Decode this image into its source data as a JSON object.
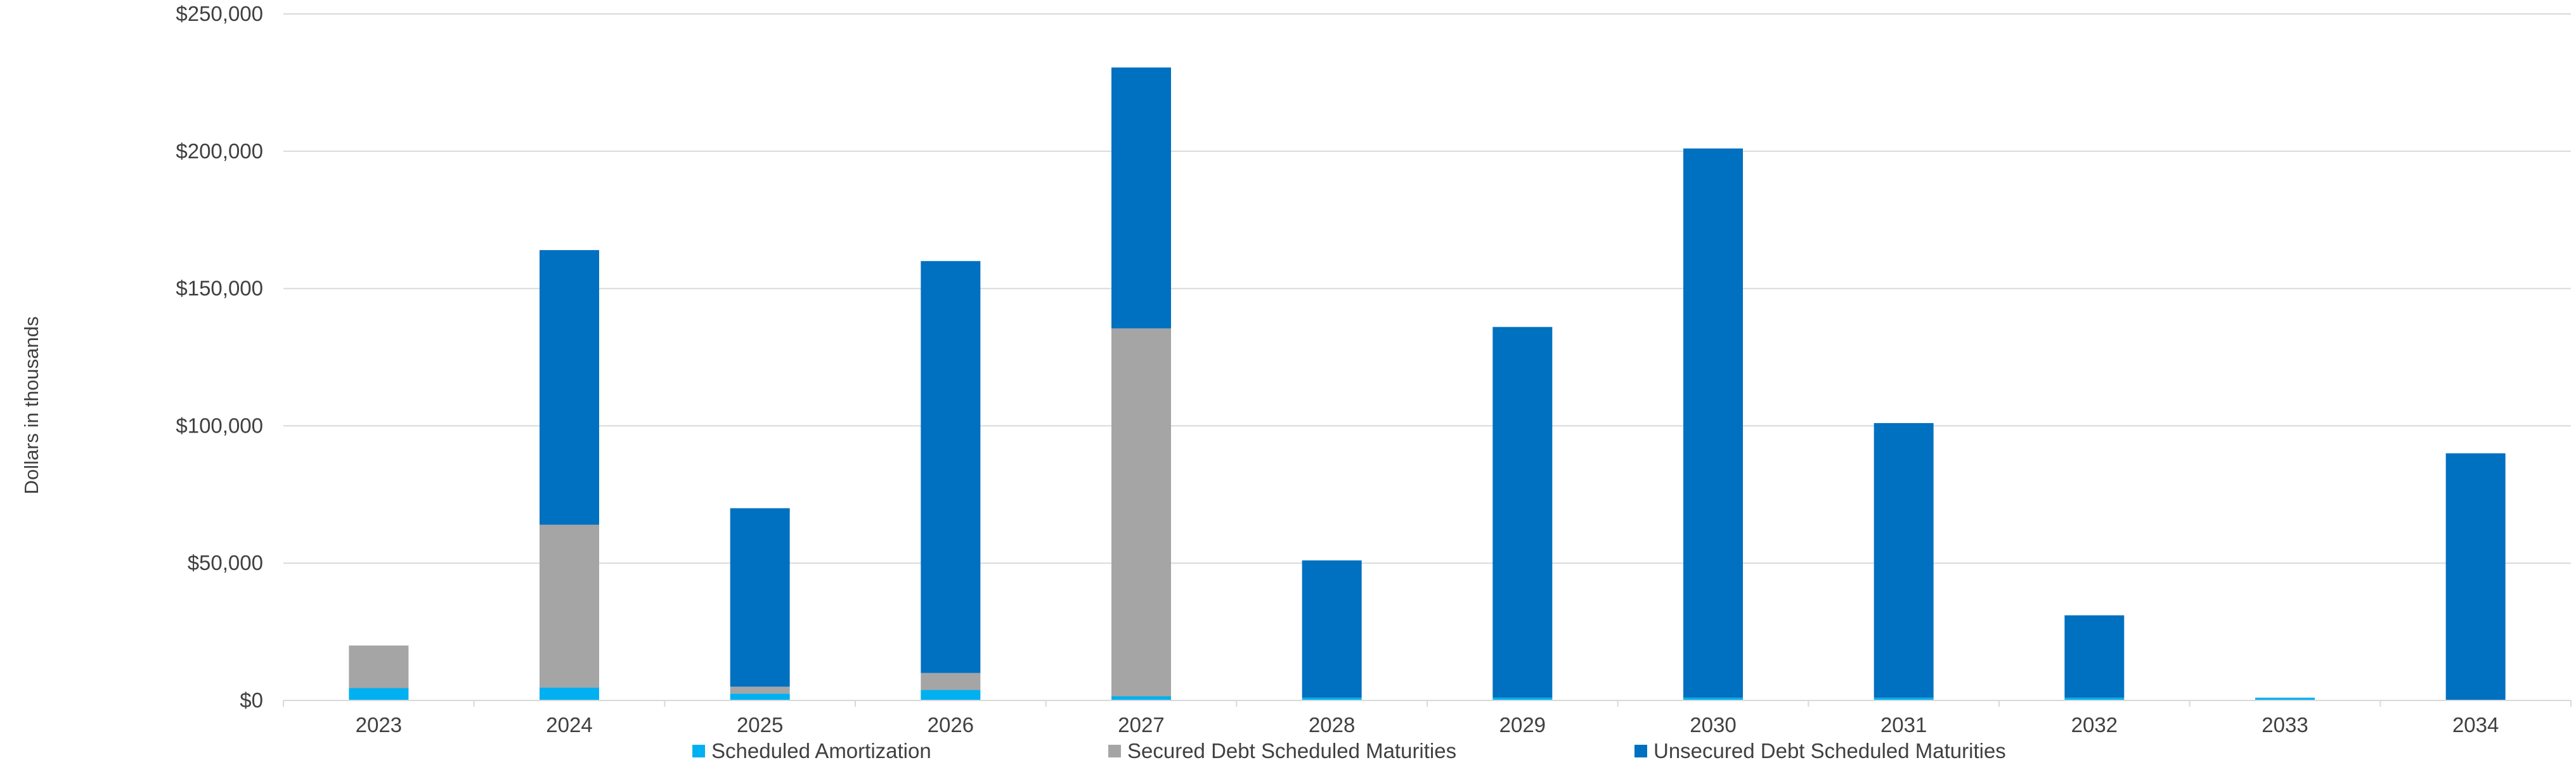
{
  "chart_data": {
    "type": "bar",
    "stacked": true,
    "title": "",
    "xlabel": "",
    "ylabel": "Dollars in thousands",
    "categories": [
      "2023",
      "2024",
      "2025",
      "2026",
      "2027",
      "2028",
      "2029",
      "2030",
      "2031",
      "2032",
      "2033",
      "2034"
    ],
    "ylim": [
      0,
      250000
    ],
    "yticks": [
      0,
      50000,
      100000,
      150000,
      200000,
      250000
    ],
    "ytick_labels": [
      "$0",
      "$50,000",
      "$100,000",
      "$150,000",
      "$200,000",
      "$250,000"
    ],
    "grid": true,
    "legend": "bottom",
    "series": [
      {
        "name": "Scheduled Amortization",
        "color": "#00B0F0",
        "values": [
          4500,
          4700,
          2500,
          3800,
          1500,
          1000,
          1000,
          1000,
          1000,
          1000,
          1000,
          0
        ]
      },
      {
        "name": "Secured Debt Scheduled Maturities",
        "color": "#A5A5A5",
        "values": [
          15500,
          59300,
          2500,
          6200,
          134000,
          0,
          0,
          0,
          0,
          0,
          0,
          0
        ]
      },
      {
        "name": "Unsecured Debt Scheduled Maturities",
        "color": "#0070C0",
        "values": [
          0,
          100000,
          65000,
          150000,
          95000,
          50000,
          135000,
          200000,
          100000,
          30000,
          0,
          90000
        ]
      }
    ]
  }
}
